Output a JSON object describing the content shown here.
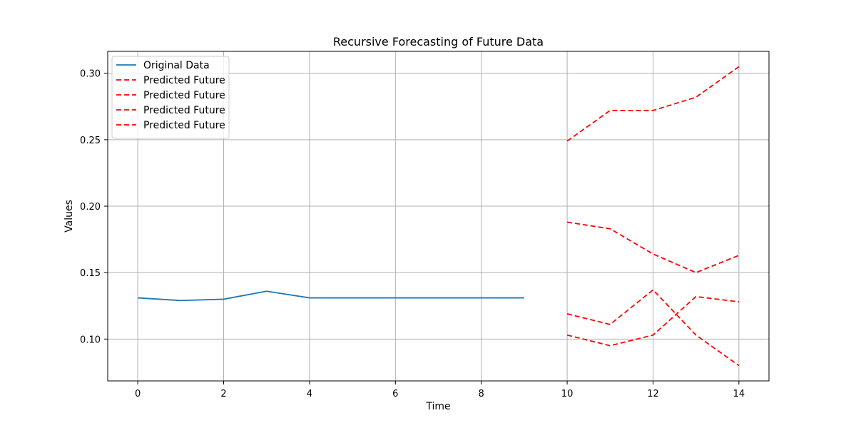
{
  "chart_data": {
    "type": "line",
    "title": "Recursive Forecasting of Future Data",
    "xlabel": "Time",
    "ylabel": "Values",
    "xlim": [
      -0.7,
      14.7
    ],
    "ylim": [
      0.0685,
      0.3165
    ],
    "xticks": [
      0,
      2,
      4,
      6,
      8,
      10,
      12,
      14
    ],
    "yticks": [
      0.1,
      0.15,
      0.2,
      0.25,
      0.3
    ],
    "xtick_labels": [
      "0",
      "2",
      "4",
      "6",
      "8",
      "10",
      "12",
      "14"
    ],
    "ytick_labels": [
      "0.10",
      "0.15",
      "0.20",
      "0.25",
      "0.30"
    ],
    "grid": true,
    "legend_position": "top-left",
    "series": [
      {
        "name": "Original Data",
        "style": "solid",
        "color": "#1f77b4",
        "x": [
          0,
          1,
          2,
          3,
          4,
          5,
          6,
          7,
          8,
          9
        ],
        "y": [
          0.131,
          0.129,
          0.13,
          0.136,
          0.131,
          0.131,
          0.131,
          0.131,
          0.131,
          0.131
        ]
      },
      {
        "name": "Predicted Future",
        "style": "dashed",
        "color": "#ff0000",
        "x": [
          10,
          11,
          12,
          13,
          14
        ],
        "y": [
          0.249,
          0.272,
          0.272,
          0.282,
          0.305
        ]
      },
      {
        "name": "Predicted Future",
        "style": "dashed",
        "color": "#ff0000",
        "x": [
          10,
          11,
          12,
          13,
          14
        ],
        "y": [
          0.188,
          0.183,
          0.164,
          0.15,
          0.163
        ]
      },
      {
        "name": "Predicted Future",
        "style": "dashed",
        "color": "#ff0000",
        "x": [
          10,
          11,
          12,
          13,
          14
        ],
        "y": [
          0.119,
          0.111,
          0.137,
          0.103,
          0.08
        ]
      },
      {
        "name": "Predicted Future",
        "style": "dashed",
        "color": "#ff0000",
        "x": [
          10,
          11,
          12,
          13,
          14
        ],
        "y": [
          0.103,
          0.095,
          0.103,
          0.132,
          0.128
        ]
      }
    ]
  }
}
